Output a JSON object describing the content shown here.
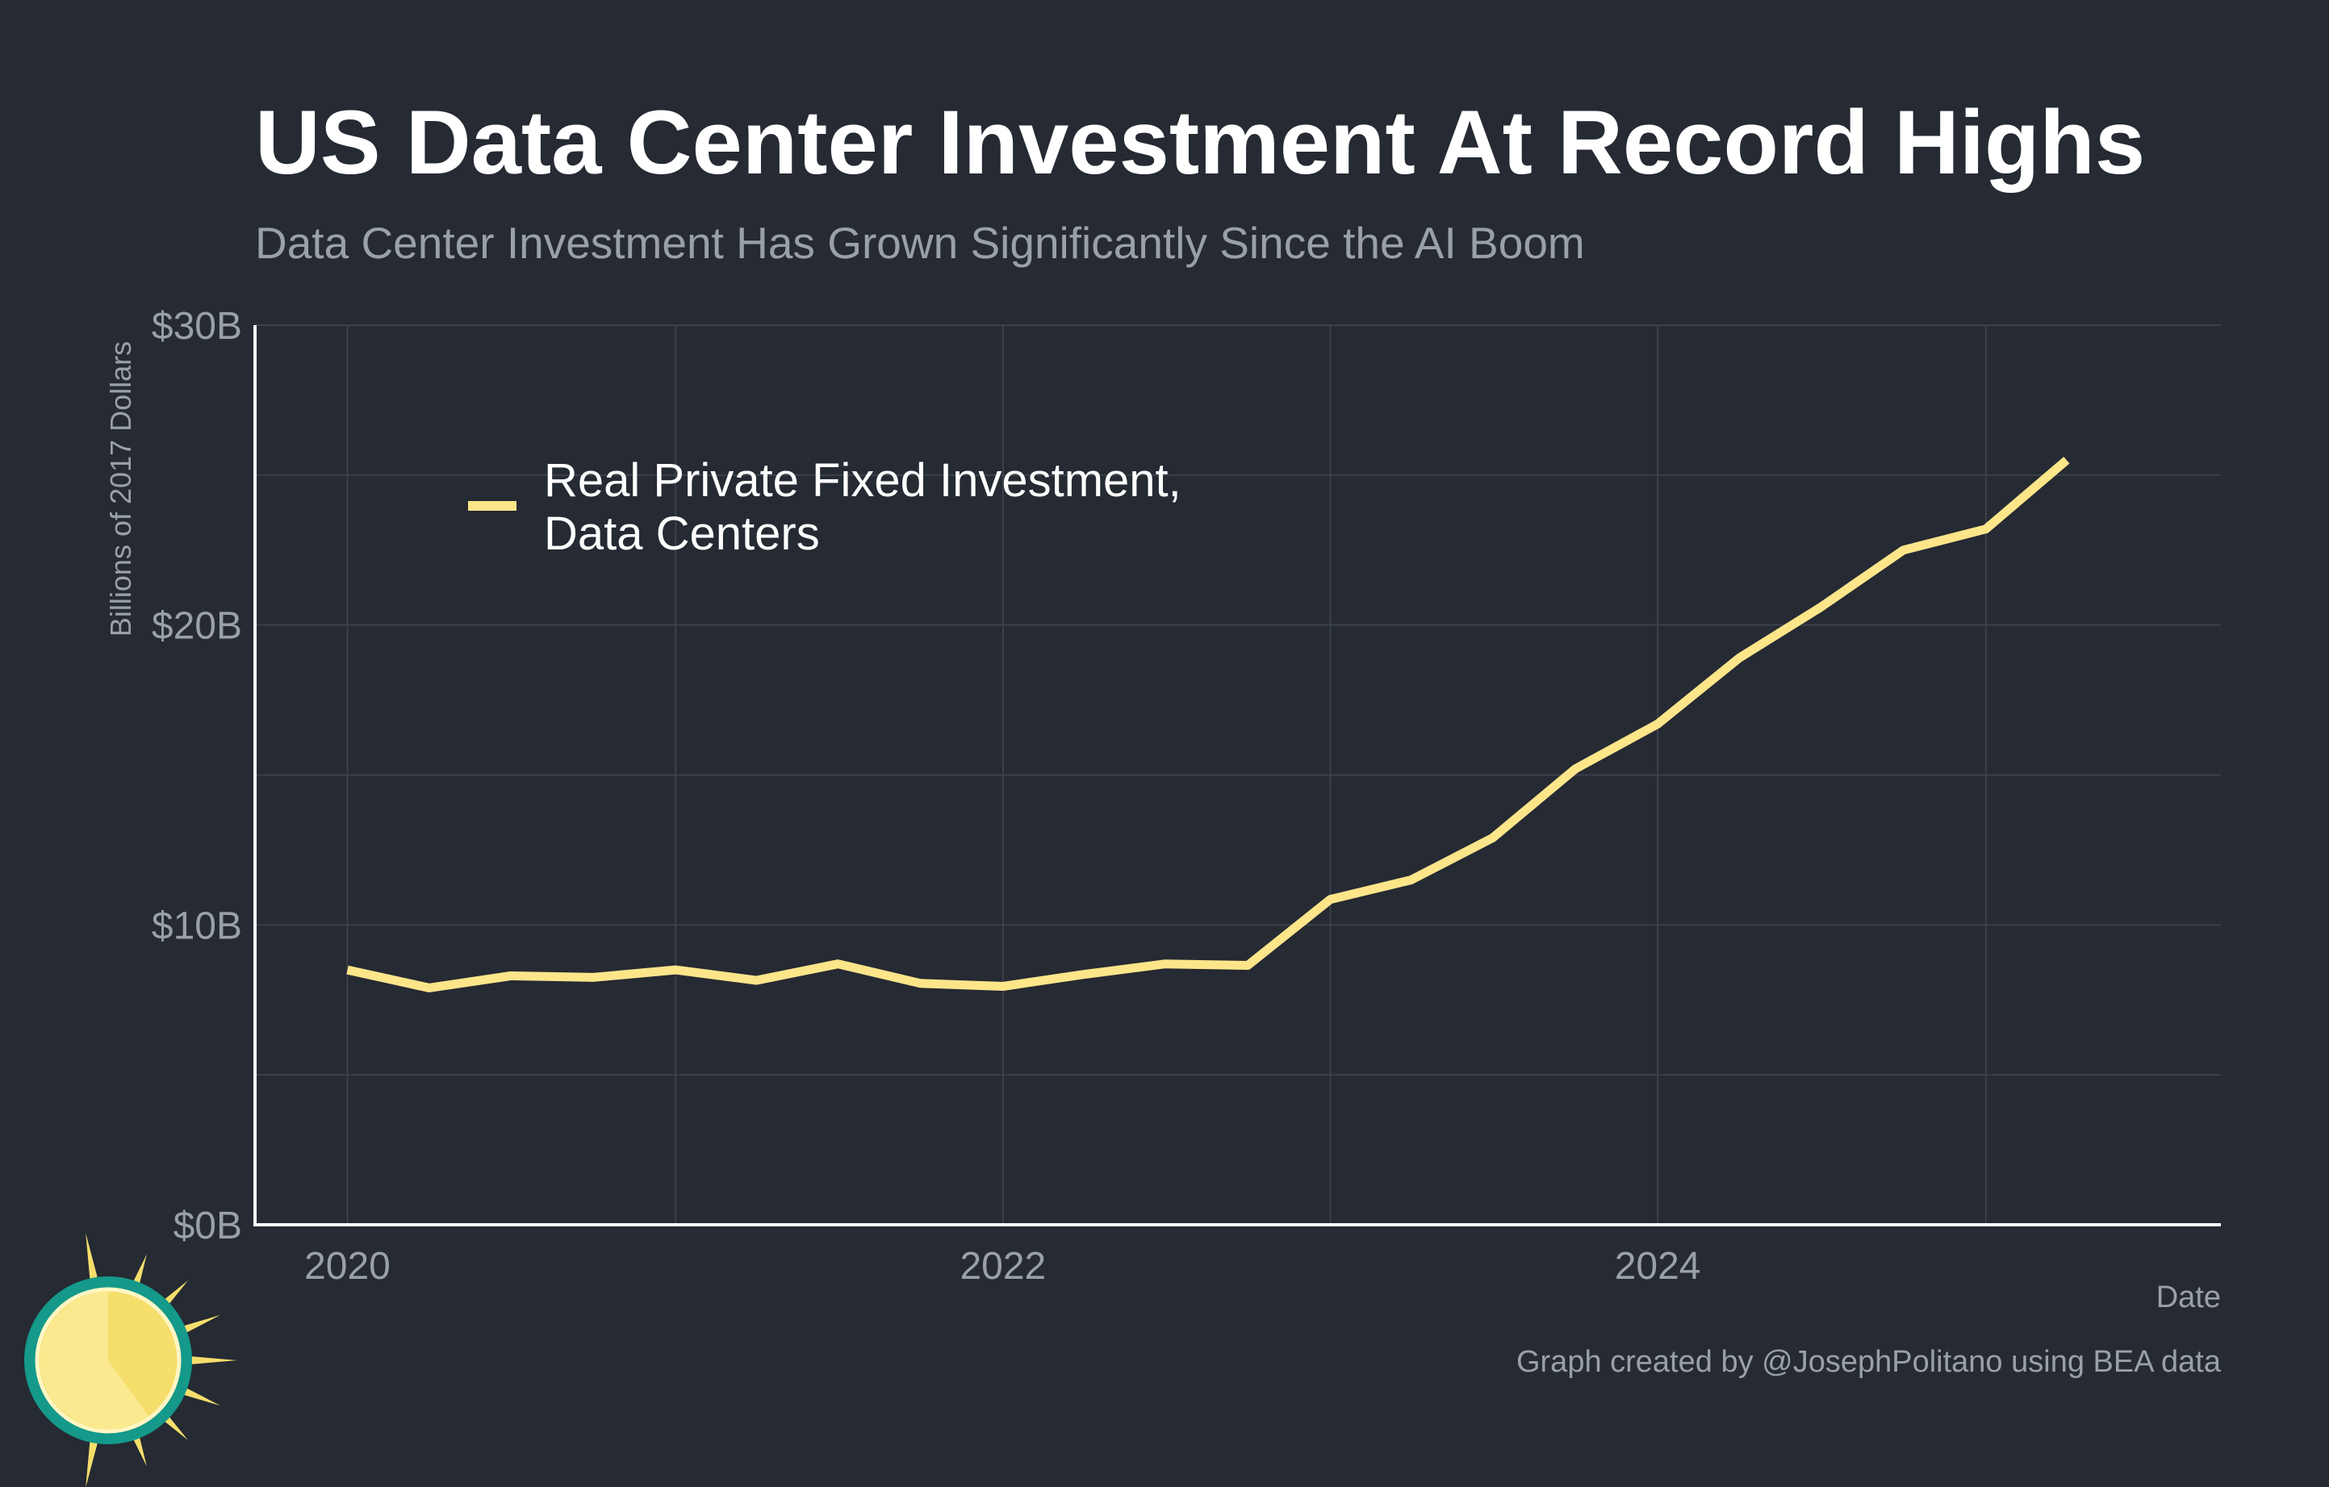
{
  "colors": {
    "background": "#252a33",
    "grid": "#3b404a",
    "axis": "#ffffff",
    "line": "#fde58a",
    "title": "#ffffff",
    "muted": "#9aa0a8",
    "logo_teal": "#14998a",
    "logo_sun": "#f6de6c",
    "logo_sun_light": "#fbe98f"
  },
  "logo": {
    "icon": "sun-icon"
  },
  "chart_data": {
    "type": "line",
    "title": "US Data Center Investment At Record Highs",
    "subtitle": "Data Center Investment Has Grown Significantly Since the AI Boom",
    "xlabel": "Date",
    "ylabel": "Billions of 2017 Dollars",
    "caption": "Graph created by @JosephPolitano using BEA data",
    "xlim": [
      "2019-09-20",
      "2025-09-20"
    ],
    "ylim": [
      0,
      30
    ],
    "x_ticks": [
      {
        "value": "2020-01-01",
        "label": "2020"
      },
      {
        "value": "2022-01-01",
        "label": "2022"
      },
      {
        "value": "2024-01-01",
        "label": "2024"
      }
    ],
    "x_minor_gridlines": [
      "2021-01-01",
      "2023-01-01",
      "2025-01-01"
    ],
    "y_ticks": [
      {
        "value": 0,
        "label": "$0B"
      },
      {
        "value": 10,
        "label": "$10B"
      },
      {
        "value": 20,
        "label": "$20B"
      },
      {
        "value": 30,
        "label": "$30B"
      }
    ],
    "y_minor_gridlines": [
      5,
      15,
      25
    ],
    "grid": true,
    "legend": {
      "position": "top-left"
    },
    "series": [
      {
        "name": [
          "Real Private Fixed Investment,",
          "Data Centers"
        ],
        "color": "#fde58a",
        "points": [
          {
            "x": "2020-01-01",
            "y": 8.5
          },
          {
            "x": "2020-04-01",
            "y": 7.9
          },
          {
            "x": "2020-07-01",
            "y": 8.3
          },
          {
            "x": "2020-10-01",
            "y": 8.25
          },
          {
            "x": "2021-01-01",
            "y": 8.5
          },
          {
            "x": "2021-04-01",
            "y": 8.15
          },
          {
            "x": "2021-07-01",
            "y": 8.7
          },
          {
            "x": "2021-10-01",
            "y": 8.05
          },
          {
            "x": "2022-01-01",
            "y": 7.95
          },
          {
            "x": "2022-04-01",
            "y": 8.35
          },
          {
            "x": "2022-07-01",
            "y": 8.7
          },
          {
            "x": "2022-10-01",
            "y": 8.65
          },
          {
            "x": "2023-01-01",
            "y": 10.85
          },
          {
            "x": "2023-04-01",
            "y": 11.5
          },
          {
            "x": "2023-07-01",
            "y": 12.9
          },
          {
            "x": "2023-10-01",
            "y": 15.2
          },
          {
            "x": "2024-01-01",
            "y": 16.7
          },
          {
            "x": "2024-04-01",
            "y": 18.9
          },
          {
            "x": "2024-07-01",
            "y": 20.6
          },
          {
            "x": "2024-10-01",
            "y": 22.5
          },
          {
            "x": "2025-01-01",
            "y": 23.2
          },
          {
            "x": "2025-04-01",
            "y": 25.5
          }
        ]
      }
    ]
  }
}
